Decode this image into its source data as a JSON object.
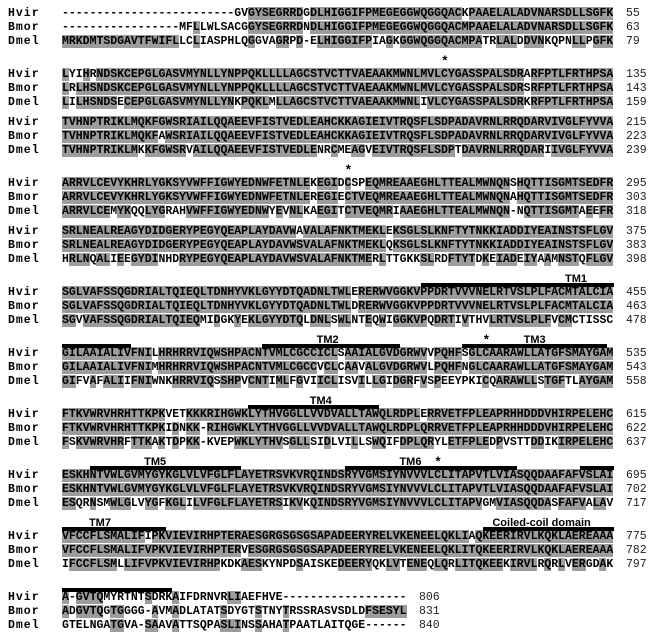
{
  "figure_type": "multiple-sequence-alignment",
  "colors": {
    "shade": "#9c9c9c",
    "bar": "#000000",
    "text": "#000000"
  },
  "alignment": {
    "sequence_names": [
      "Hvir",
      "Bmor",
      "Dmel"
    ],
    "blocks": [
      {
        "rows": [
          {
            "name": "Hvir",
            "seq": "-------------------------GVGYSEGRRDGDLHIGGIFPMEGEGGWQGGQACKPAAELALADVNARSDLLSGFK",
            "num": "55"
          },
          {
            "name": "Bmor",
            "seq": "-----------------MFLLWLSACGGYSEGRRDNDLHIGGIFPMEGEGGWQGGQACMPAAELALADVNARSDLLSGFK",
            "num": "63"
          },
          {
            "name": "Dmel",
            "seq": "MRKDMTSDGAVTFWIFLLCLIASPHLQGGVAGRPD-ELHIGGIFPIAGKGGWQGGQACMPATRLALDDVNKQPNLLPGFK",
            "num": "79"
          }
        ]
      },
      {
        "asterisks": [
          56
        ],
        "rows": [
          {
            "name": "Hvir",
            "seq": "LYIHRNDSKCEPGLGASVMYNLLYNPPQKLLLLAGCSTVCTTVAEAAKMWNLMVLCYGASSPALSDRARFPTLFRTHPSA",
            "num": "135"
          },
          {
            "name": "Bmor",
            "seq": "LRLHSNDSKCEPGLGASVMYNLLYNPPQKLLLLAGCSTVCTTVAEAAKMWNLMVLCYGASSPALSDRSRFPTLFRTHPSA",
            "num": "143"
          },
          {
            "name": "Dmel",
            "seq": "LILHSNDSECEPGLGASVMYNLLYNKPQKLMLLAGCSTVCTTVAEAAKMWNLIVLCYGASSPALSDRKRFPTLFRTHPSA",
            "num": "159"
          }
        ]
      },
      {
        "rows": [
          {
            "name": "Hvir",
            "seq": "TVHNPTRIKLMQKFGWSRIAILQQAEEVFISTVEDLEAHCKKAGIEIVTRQSFLSDPADAVRNLRRQDARVIVGLFYVVA",
            "num": "215"
          },
          {
            "name": "Bmor",
            "seq": "TVHNPTRIKLMQKFAWSRIAILQQAEEVFISTVEDLEAHCKKAGIEIVTRQSFLSDPADAVRNLRRQDARVIVGLFYVVA",
            "num": "223"
          },
          {
            "name": "Dmel",
            "seq": "TVHNPTRIKLMKKFGWSRVAILQQAEEVFISTVEDLENRCMEAGVEIVTRQSFLSDPTDAVRNLRRQDARIIVGLFYVVA",
            "num": "239"
          }
        ]
      },
      {
        "asterisks": [
          42
        ],
        "rows": [
          {
            "name": "Hvir",
            "seq": "ARRVLCEVYKHRLYGKSYVWFFIGWYEDNWFETNLEKEGIDCSPEQMREAAEGHLTTEALMWNQNSHQTTISGMTSEDFR",
            "num": "295"
          },
          {
            "name": "Bmor",
            "seq": "ARRVLCEVYKHRLYGKSYVWFFIGWYEDNWFETNLEREGIECTVEQMREAAEGHLTTEALMWNQNAHQTTISGMTSEDFR",
            "num": "303"
          },
          {
            "name": "Dmel",
            "seq": "ARRVLCEMYKQQLYGRAHVWFFIGWYEDNWYEVNLKAEGITCTVEQMRIAAEGHLTTEALMWNQN-NQTTISGMTAEEFR",
            "num": "318"
          }
        ]
      },
      {
        "rows": [
          {
            "name": "Hvir",
            "seq": "SRLNEALREAGYDIDGERYPEGYQEAPLAYDAVWAVALAFNKTMEKLEKSGLSLKNFTYTNKKIADDIYEAINSTSFLGV",
            "num": "375"
          },
          {
            "name": "Bmor",
            "seq": "SRLNEALREAGYDIDGERYPEGYQEAPLAYDAVWSVALAFNKTMEKLQKSGLSLKNFTYTNKKIADDIYEAINSTSFLGV",
            "num": "383"
          },
          {
            "name": "Dmel",
            "seq": "HRLNQALIEEGYDINHDRYPEGYQEAPLAYDAVWSVALAFNKTMERLTTGKKSLRDFTYTDKEIADEIYAAMNSTQFLGV",
            "num": "398"
          }
        ]
      },
      {
        "labels": [
          {
            "text": "TM1",
            "col": 75
          }
        ],
        "bars": [
          {
            "from": 53,
            "to": 80
          }
        ],
        "rows": [
          {
            "name": "Hvir",
            "seq": "SGLVAFSSQGDRIALTQIEQLTDNHYVKLGYYDTQADNLTWLERERWVGGKVPPDRTVVVNELRTVSLPLFACMTALCIA",
            "num": "455"
          },
          {
            "name": "Bmor",
            "seq": "SGLVAFSSQGDRIALTQIEQLTDNHYVKLGYYDTQADNLTWLDRERWVGGKVPPDRTVVVNELRTVSLPLFACMTALCIA",
            "num": "463"
          },
          {
            "name": "Dmel",
            "seq": "SGVVAFSSQGDRIALTQIEQMIDGKYEKLGYYDTQLDNLSWLNTEQWIGGKVPQDRTIVTHVLRTVSLPLFVCMCTISSC",
            "num": "478"
          }
        ]
      },
      {
        "labels": [
          {
            "text": "TM2",
            "col": 39
          },
          {
            "text": "TM3",
            "col": 69
          }
        ],
        "asterisks": [
          62
        ],
        "bars": [
          {
            "from": 1,
            "to": 10
          },
          {
            "from": 30,
            "to": 49
          },
          {
            "from": 59,
            "to": 79
          }
        ],
        "rows": [
          {
            "name": "Hvir",
            "seq": "GILAAIALIVFNILHRHRRVIQWSHPACNTVMLCGCCICLSAAIALGVDGRWVVPQHFSGLCAARAWLLATGFSMAYGAM",
            "num": "535"
          },
          {
            "name": "Bmor",
            "seq": "GILAAIALIVFNIMHRHRRVIQWSHPACNTVMLCGCCVCLCAAVALGVDGRWVLPQHFNGLCAARAWLLATGFSMAYGAM",
            "num": "543"
          },
          {
            "name": "Dmel",
            "seq": "GIFVAFALIIFNIWNKHRRVIQSSHPVCNTIMLFGVIICLISVILLGIDGRFVSPEEYPKICQARAWLLSTGFTLAYGAM",
            "num": "558"
          }
        ]
      },
      {
        "labels": [
          {
            "text": "TM4",
            "col": 38
          }
        ],
        "bars": [
          {
            "from": 28,
            "to": 46
          }
        ],
        "rows": [
          {
            "name": "Hvir",
            "seq": "FTKVWRVHRHTTKPKVETKKKRIHGWKLYTHVGGLLVVDVALLTAWQLRDPLERRVETFPLEAPRHHDDDVHIRPELEHC",
            "num": "615"
          },
          {
            "name": "Bmor",
            "seq": "FTKVWRVHRHTTKPKIDNKK-RIHGWKLYTHVGGLLVVDVALLTAWQLRDPLQRRVETFPLEAPRHHDDDVHIRPELEHC",
            "num": "622"
          },
          {
            "name": "Dmel",
            "seq": "FSKVWRVHRFTTKAKTDPKK-KVEPWKLYTHVSGLLSIDLVILLSWQIFDPLQRYLETFPLEDPVSTTDDIKIRPELEHC",
            "num": "637"
          }
        ]
      },
      {
        "labels": [
          {
            "text": "TM5",
            "col": 14
          },
          {
            "text": "TM6",
            "col": 51
          }
        ],
        "asterisks": [
          55
        ],
        "bars": [
          {
            "from": 5,
            "to": 26
          },
          {
            "from": 42,
            "to": 66
          },
          {
            "from": 76,
            "to": 80
          }
        ],
        "rows": [
          {
            "name": "Hvir",
            "seq": "ESKHNTVWLGVMYGYKGLVLVFGLFLAYETRSVKVRQINDSRYVGMSIYNVVVLCLITAPVTLVIASQQDAAFAFVSLAI",
            "num": "695"
          },
          {
            "name": "Bmor",
            "seq": "ESKHNTVWLGVMYGYKGLVLVFGLFLAYETRSVKVRQINDSRYVGMSIYNVVVLCLITAPVTLVIASQQDAAFAFVSLAI",
            "num": "702"
          },
          {
            "name": "Dmel",
            "seq": "ESQRNSMWLGLVYGFKGLILVFGLFLAYETRSIKVKQINDSRYVGMSIYNVVVLCLITAPVGMVIASQQDASFAFVALAV",
            "num": "717"
          }
        ]
      },
      {
        "labels": [
          {
            "text": "TM7",
            "col": 6
          },
          {
            "text": "Coiled-coil domain",
            "col": 70
          }
        ],
        "bars": [
          {
            "from": 1,
            "to": 15
          },
          {
            "from": 62,
            "to": 80
          }
        ],
        "rows": [
          {
            "name": "Hvir",
            "seq": "VFCCFLSMALIFIPKVIEVIRHPTERAESGRGSGSGSAPADEERYRELVKENEELQKLIAQKEERIRVLKQKLAEREAAA",
            "num": "775"
          },
          {
            "name": "Bmor",
            "seq": "VFCCFLSMALIFVPKVIEVIRHPTERVESGRGSGSGSAPADEERYRELVKENEELQKLITQKEERIRVLKQKLAEREAAA",
            "num": "782"
          },
          {
            "name": "Dmel",
            "seq": "IFCCFLSMLLIFVPKVIEVIRHPKDKAESKYNPDSAISKEDEERYQKLVTENEQLQRLITQKEEKIRVLRQRLVERGDAK",
            "num": "797"
          }
        ]
      },
      {
        "bars": [
          {
            "from": 1,
            "to": 16
          }
        ],
        "rows": [
          {
            "name": "Hvir",
            "seq": "A-GVTQMYRTNTSDRKAIFDRNVRLIAEFHVE------------------",
            "num": "806"
          },
          {
            "name": "Bmor",
            "seq": "ADGVTQGTGGGG-AVMADLATATSDYGTSTNYTRSSRASVSDLDFSESYL",
            "num": "831"
          },
          {
            "name": "Dmel",
            "seq": "GTELNGATGVA-SAAVATTSQPASLINSSAHATPAATLAITQGE------",
            "num": "840"
          }
        ]
      }
    ]
  }
}
